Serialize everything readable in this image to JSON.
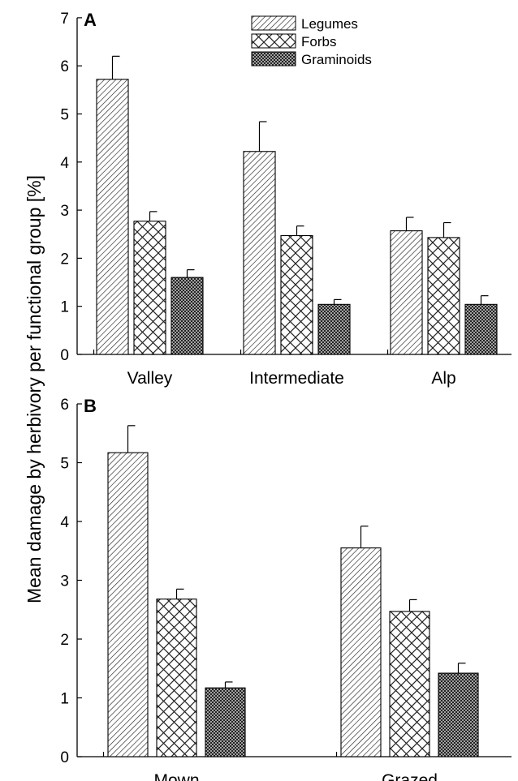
{
  "ylabel": "Mean damage by herbivory per functional group [%]",
  "legend": [
    {
      "name": "Legumes",
      "pattern": "diag"
    },
    {
      "name": "Forbs",
      "pattern": "cross"
    },
    {
      "name": "Graminoids",
      "pattern": "dense"
    }
  ],
  "chart_data": [
    {
      "type": "bar",
      "panel": "A",
      "categories": [
        "Valley",
        "Intermediate",
        "Alp"
      ],
      "ylim": [
        0,
        7
      ],
      "yticks": [
        "0",
        "1",
        "2",
        "3",
        "4",
        "5",
        "6",
        "7"
      ],
      "series": [
        {
          "name": "Legumes",
          "values": [
            5.72,
            4.22,
            2.57
          ],
          "errors": [
            0.48,
            0.62,
            0.28
          ]
        },
        {
          "name": "Forbs",
          "values": [
            2.77,
            2.47,
            2.43
          ],
          "errors": [
            0.2,
            0.2,
            0.31
          ]
        },
        {
          "name": "Graminoids",
          "values": [
            1.6,
            1.04,
            1.04
          ],
          "errors": [
            0.16,
            0.1,
            0.18
          ]
        }
      ]
    },
    {
      "type": "bar",
      "panel": "B",
      "categories": [
        "Mown",
        "Grazed"
      ],
      "ylim": [
        0,
        6
      ],
      "yticks": [
        "0",
        "1",
        "2",
        "3",
        "4",
        "5",
        "6"
      ],
      "series": [
        {
          "name": "Legumes",
          "values": [
            5.17,
            3.55
          ],
          "errors": [
            0.46,
            0.37
          ]
        },
        {
          "name": "Forbs",
          "values": [
            2.68,
            2.47
          ],
          "errors": [
            0.17,
            0.2
          ]
        },
        {
          "name": "Graminoids",
          "values": [
            1.17,
            1.42
          ],
          "errors": [
            0.1,
            0.17
          ]
        }
      ]
    }
  ]
}
